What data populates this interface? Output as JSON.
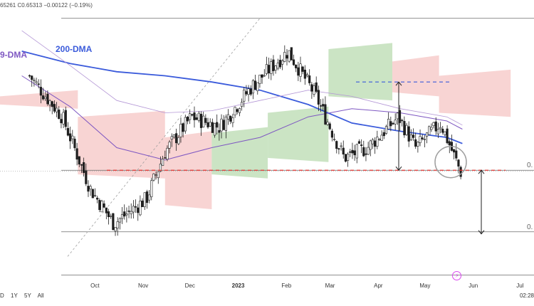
{
  "header": {
    "ohlc_text": "65261 C0.65313 −0.00122 (−0.19%)"
  },
  "labels": {
    "dma200": "200-DMA",
    "dma_short": "9-DMA"
  },
  "price_labels": [
    "0.",
    "0."
  ],
  "range_bar": [
    "D",
    "1Y",
    "5Y",
    "All"
  ],
  "time_readout": "02:28",
  "colors": {
    "up": "#1f1f1f",
    "down": "#1f1f1f",
    "dma200": "#3b5bdb",
    "dma_short": "#7e57c2",
    "cloud_bull": "#b9dbb0",
    "cloud_bear": "#f5c6c4",
    "support": "#e53935",
    "resistance": "#3b5bdb"
  },
  "chart_data": {
    "type": "candlestick",
    "x_ticks": [
      "Oct",
      "Nov",
      "Dec",
      "2023",
      "Feb",
      "Mar",
      "Apr",
      "May",
      "Jun",
      "Jul"
    ],
    "ylim": [
      0.6,
      0.73
    ],
    "key_levels": {
      "support": 0.654,
      "resistance": 0.697,
      "lower_target": 0.624
    },
    "series": [
      {
        "name": "200-DMA",
        "x": [
          "2022-08-15",
          "2022-09-15",
          "2022-10-15",
          "2022-11-15",
          "2022-12-15",
          "2023-01-15",
          "2023-02-15",
          "2023-03-15",
          "2023-04-15",
          "2023-05-15",
          "2023-05-25"
        ],
        "values": [
          0.712,
          0.706,
          0.702,
          0.7,
          0.697,
          0.693,
          0.686,
          0.677,
          0.673,
          0.67,
          0.667
        ]
      },
      {
        "name": "9-DMA",
        "x": [
          "2022-08-15",
          "2022-09-15",
          "2022-10-15",
          "2022-11-15",
          "2022-12-15",
          "2023-01-15",
          "2023-02-15",
          "2023-03-15",
          "2023-04-15",
          "2023-05-15",
          "2023-05-25"
        ],
        "values": [
          0.7,
          0.685,
          0.665,
          0.659,
          0.665,
          0.67,
          0.68,
          0.684,
          0.682,
          0.678,
          0.674
        ]
      },
      {
        "name": "DMA-faint",
        "x": [
          "2022-08-15",
          "2022-09-15",
          "2022-10-15",
          "2022-11-15",
          "2022-12-15",
          "2023-01-15",
          "2023-02-15",
          "2023-03-15",
          "2023-04-15",
          "2023-05-15",
          "2023-05-25"
        ],
        "values": [
          0.722,
          0.705,
          0.688,
          0.682,
          0.683,
          0.688,
          0.693,
          0.69,
          0.684,
          0.68,
          0.676
        ]
      }
    ],
    "candles_keyframes": {
      "x": [
        "2022-08-20",
        "2022-09-10",
        "2022-09-28",
        "2022-10-13",
        "2022-11-03",
        "2022-11-15",
        "2022-12-02",
        "2022-12-20",
        "2023-01-10",
        "2023-02-02",
        "2023-02-20",
        "2023-03-10",
        "2023-03-25",
        "2023-04-14",
        "2023-04-25",
        "2023-05-11",
        "2023-05-24"
      ],
      "close": [
        0.7,
        0.68,
        0.645,
        0.628,
        0.64,
        0.663,
        0.68,
        0.675,
        0.695,
        0.712,
        0.69,
        0.66,
        0.665,
        0.68,
        0.665,
        0.677,
        0.653
      ]
    }
  }
}
